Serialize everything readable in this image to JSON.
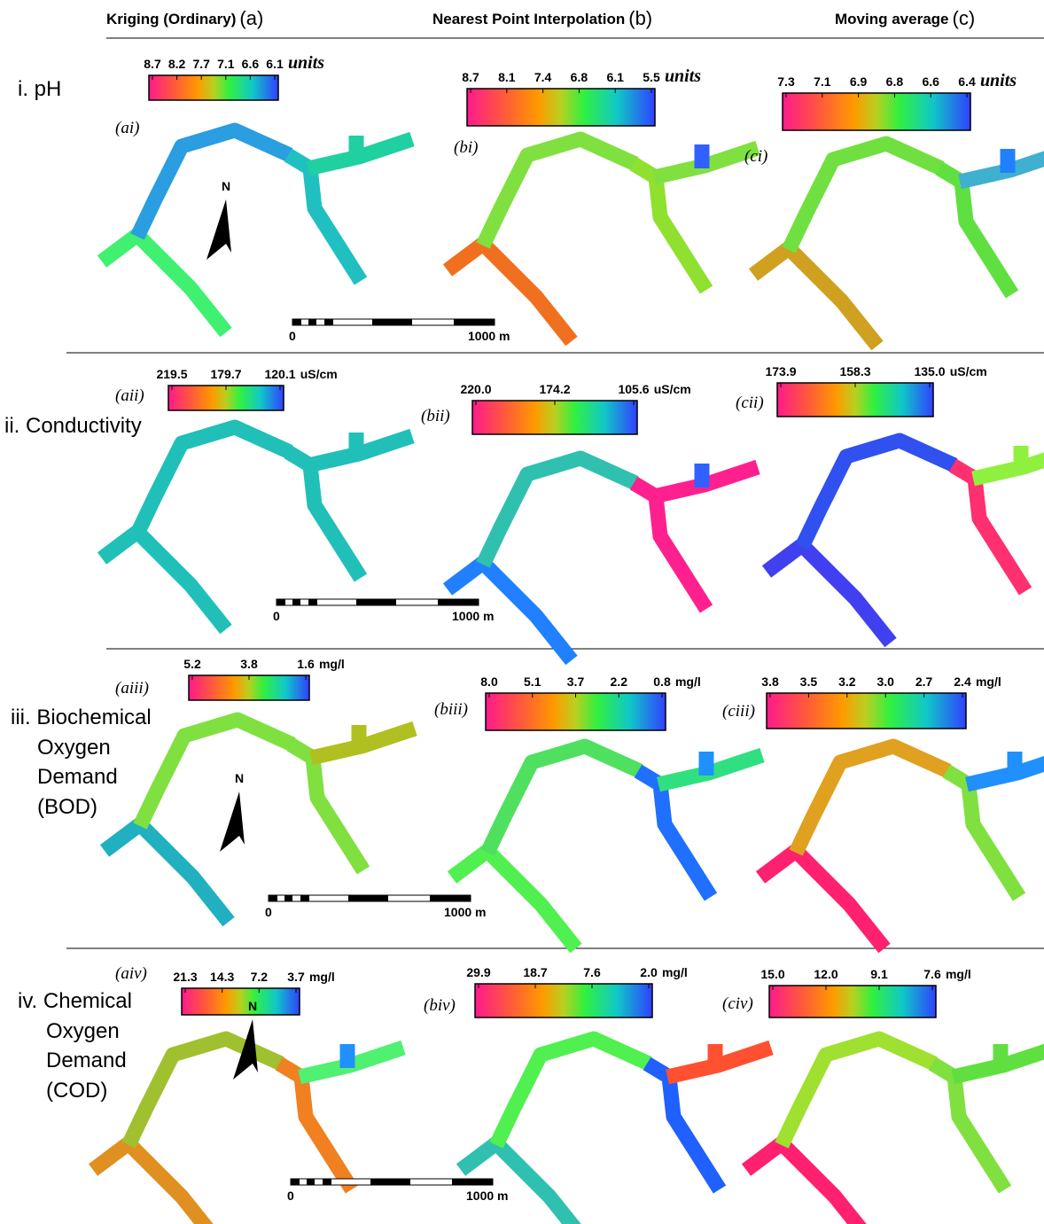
{
  "columns": [
    {
      "title": "Kriging (Ordinary)",
      "letter": "(a)"
    },
    {
      "title": "Nearest Point Interpolation",
      "letter": "(b)"
    },
    {
      "title": "Moving average",
      "letter": "(c)"
    }
  ],
  "rows": [
    {
      "label": [
        "i. pH"
      ],
      "unit": "units",
      "panels": [
        {
          "tag": "(ai)",
          "ticks": [
            "8.7",
            "8.2",
            "7.7",
            "7.1",
            "6.6",
            "6.1"
          ]
        },
        {
          "tag": "(bi)",
          "ticks": [
            "8.7",
            "8.1",
            "7.4",
            "6.8",
            "6.1",
            "5.5"
          ]
        },
        {
          "tag": "(ci)",
          "ticks": [
            "7.3",
            "7.1",
            "6.9",
            "6.8",
            "6.6",
            "6.4"
          ]
        }
      ]
    },
    {
      "label": [
        "ii. Conductivity"
      ],
      "unit": "uS/cm",
      "panels": [
        {
          "tag": "(aii)",
          "ticks": [
            "219.5",
            "179.7",
            "120.1"
          ]
        },
        {
          "tag": "(bii)",
          "ticks": [
            "220.0",
            "174.2",
            "105.6"
          ]
        },
        {
          "tag": "(cii)",
          "ticks": [
            "173.9",
            "158.3",
            "135.0"
          ]
        }
      ]
    },
    {
      "label": [
        "iii. Biochemical",
        "Oxygen",
        "Demand",
        "(BOD)"
      ],
      "unit": "mg/l",
      "panels": [
        {
          "tag": "(aiii)",
          "ticks": [
            "5.2",
            "3.8",
            "1.6"
          ]
        },
        {
          "tag": "(biii)",
          "ticks": [
            "8.0",
            "5.1",
            "3.7",
            "2.2",
            "0.8"
          ]
        },
        {
          "tag": "(ciii)",
          "ticks": [
            "3.8",
            "3.5",
            "3.2",
            "3.0",
            "2.7",
            "2.4"
          ]
        }
      ]
    },
    {
      "label": [
        "iv. Chemical",
        "Oxygen",
        "Demand",
        "(COD)"
      ],
      "unit": "mg/l",
      "panels": [
        {
          "tag": "(aiv)",
          "ticks": [
            "21.3",
            "14.3",
            "7.2",
            "3.7"
          ]
        },
        {
          "tag": "(biv)",
          "ticks": [
            "29.9",
            "18.7",
            "7.6",
            "2.0"
          ]
        },
        {
          "tag": "(civ)",
          "ticks": [
            "15.0",
            "12.0",
            "9.1",
            "7.6"
          ]
        }
      ]
    }
  ],
  "scale_bar": {
    "start": "0",
    "end": "1000 m"
  },
  "north": "N"
}
